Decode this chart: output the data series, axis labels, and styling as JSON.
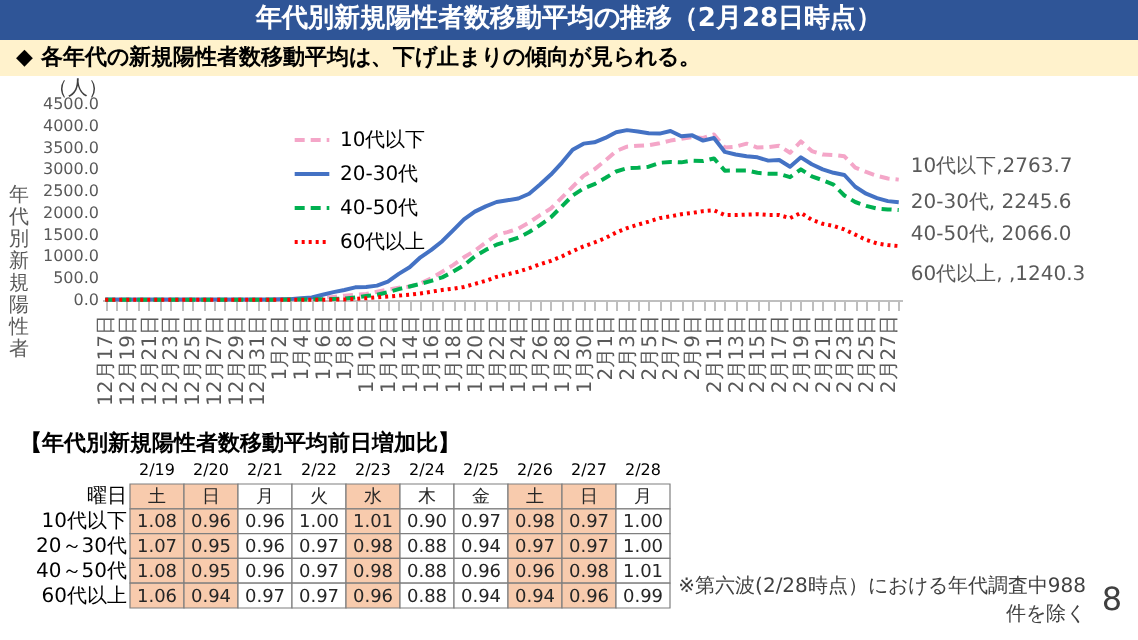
{
  "chart_data": [
    {
      "type": "line",
      "title": "年代別新規陽性者数移動平均の推移（2月28日時点）",
      "subtitle": "◆ 各年代の新規陽性者数移動平均は、下げ止まりの傾向が見られる。",
      "ylabel": "年代別新規陽性者",
      "legend": "top left",
      "categories": [
        "12月17日",
        null,
        "12月19日",
        null,
        "12月21日",
        null,
        "12月23日",
        null,
        "12月25日",
        null,
        "12月27日",
        null,
        "12月29日",
        null,
        "12月31日",
        null,
        "1月2日",
        null,
        "1月4日",
        null,
        "1月6日",
        null,
        "1月8日",
        null,
        "1月10日",
        null,
        "1月12日",
        null,
        "1月14日",
        null,
        "1月16日",
        null,
        "1月18日",
        null,
        "1月20日",
        null,
        "1月22日",
        null,
        "1月24日",
        null,
        "1月26日",
        null,
        "1月28日",
        null,
        "1月30日",
        null,
        "2月1日",
        null,
        "2月3日",
        null,
        "2月5日",
        null,
        "2月7日",
        null,
        "2月9日",
        null,
        "2月11日",
        null,
        "2月13日",
        null,
        "2月15日",
        null,
        "2月17日",
        null,
        "2月19日",
        null,
        "2月21日",
        null,
        "2月23日",
        null,
        "2月25日",
        null,
        "2月27日",
        null
      ],
      "series": [
        {
          "name": "10代以下",
          "color": "#f4a6c8",
          "line_style": "dashed",
          "values": [
            null,
            null,
            null,
            null,
            null,
            null,
            null,
            null,
            null,
            null,
            null,
            null,
            null,
            null,
            null,
            null,
            8,
            12,
            20,
            30,
            45,
            70,
            100,
            120,
            140,
            190,
            240,
            280,
            310,
            380,
            500,
            650,
            800,
            980,
            1130,
            1320,
            1490,
            1560,
            1640,
            1780,
            1950,
            2100,
            2350,
            2600,
            2850,
            3000,
            3200,
            3420,
            3520,
            3540,
            3555,
            3600,
            3660,
            3700,
            3740,
            3720,
            3800,
            3500,
            3520,
            3590,
            3500,
            3510,
            3540,
            3380,
            3640,
            3420,
            3340,
            3330,
            3300,
            3040,
            2940,
            2850,
            2790,
            2763.7
          ],
          "value_labels": [
            null,
            null,
            null,
            null,
            null,
            null,
            null,
            null,
            null,
            null,
            null,
            null,
            null,
            null,
            null,
            null,
            null,
            null,
            null,
            null,
            null,
            null,
            null,
            null,
            null,
            null,
            null,
            null,
            null,
            null,
            null,
            null,
            null,
            null,
            null,
            null,
            null,
            null,
            null,
            null,
            null,
            null,
            null,
            null,
            null,
            null,
            null,
            null,
            null,
            null,
            null,
            null,
            null,
            null,
            null,
            null,
            null,
            null,
            null,
            null,
            null,
            null,
            null,
            null,
            null,
            null,
            null,
            null,
            null,
            null,
            null,
            null,
            null,
            "10代以下,2763.7"
          ]
        },
        {
          "name": "20-30代",
          "color": "#4472c4",
          "line_style": "solid",
          "values": [
            10,
            10,
            10,
            10,
            10,
            10,
            10,
            10,
            10,
            10,
            10,
            10,
            10,
            10,
            10,
            10,
            15,
            20,
            40,
            60,
            120,
            180,
            230,
            290,
            300,
            330,
            420,
            600,
            750,
            980,
            1150,
            1350,
            1600,
            1850,
            2030,
            2150,
            2250,
            2290,
            2330,
            2440,
            2650,
            2880,
            3150,
            3450,
            3590,
            3620,
            3720,
            3850,
            3900,
            3870,
            3830,
            3820,
            3880,
            3760,
            3780,
            3660,
            3720,
            3400,
            3340,
            3300,
            3275,
            3200,
            3215,
            3060,
            3275,
            3118,
            3000,
            2920,
            2870,
            2600,
            2440,
            2340,
            2270,
            2245.6
          ],
          "value_labels": [
            null,
            null,
            null,
            null,
            null,
            null,
            null,
            null,
            null,
            null,
            null,
            null,
            null,
            null,
            null,
            null,
            null,
            null,
            null,
            null,
            null,
            null,
            null,
            null,
            null,
            null,
            null,
            null,
            null,
            null,
            null,
            null,
            null,
            null,
            null,
            null,
            null,
            null,
            null,
            null,
            null,
            null,
            null,
            null,
            null,
            null,
            null,
            null,
            null,
            null,
            null,
            null,
            null,
            null,
            null,
            null,
            null,
            null,
            null,
            null,
            null,
            null,
            null,
            null,
            null,
            null,
            null,
            null,
            null,
            null,
            null,
            null,
            null,
            "20-30代, 2245.6"
          ]
        },
        {
          "name": "40-50代",
          "color": "#00b050",
          "line_style": "dashed",
          "values": [
            5,
            5,
            5,
            5,
            5,
            5,
            5,
            5,
            5,
            5,
            5,
            5,
            5,
            5,
            5,
            5,
            7,
            10,
            12,
            15,
            20,
            25,
            30,
            60,
            90,
            120,
            180,
            250,
            310,
            370,
            440,
            520,
            650,
            800,
            1000,
            1150,
            1270,
            1350,
            1430,
            1560,
            1720,
            1900,
            2150,
            2400,
            2560,
            2660,
            2800,
            2950,
            3025,
            3035,
            3060,
            3150,
            3170,
            3160,
            3200,
            3190,
            3250,
            2970,
            2975,
            2975,
            2920,
            2900,
            2900,
            2820,
            3000,
            2840,
            2750,
            2650,
            2400,
            2250,
            2160,
            2100,
            2080,
            2066.0
          ],
          "value_labels": [
            null,
            null,
            null,
            null,
            null,
            null,
            null,
            null,
            null,
            null,
            null,
            null,
            null,
            null,
            null,
            null,
            null,
            null,
            null,
            null,
            null,
            null,
            null,
            null,
            null,
            null,
            null,
            null,
            null,
            null,
            null,
            null,
            null,
            null,
            null,
            null,
            null,
            null,
            null,
            null,
            null,
            null,
            null,
            null,
            null,
            null,
            null,
            null,
            null,
            null,
            null,
            null,
            null,
            null,
            null,
            null,
            null,
            null,
            null,
            null,
            null,
            null,
            null,
            null,
            null,
            null,
            null,
            null,
            null,
            null,
            null,
            null,
            null,
            "40-50代, 2066.0"
          ]
        },
        {
          "name": "60代以上",
          "color": "#ff0000",
          "line_style": "dotted",
          "values": [
            3,
            3,
            3,
            3,
            3,
            3,
            3,
            3,
            3,
            3,
            3,
            3,
            3,
            3,
            3,
            3,
            4,
            5,
            6,
            7,
            8,
            9,
            10,
            25,
            40,
            60,
            80,
            100,
            120,
            150,
            190,
            230,
            260,
            300,
            370,
            440,
            530,
            590,
            650,
            730,
            820,
            900,
            1000,
            1120,
            1230,
            1320,
            1420,
            1550,
            1650,
            1730,
            1800,
            1880,
            1920,
            1970,
            2000,
            2040,
            2060,
            1950,
            1950,
            1960,
            1970,
            1950,
            1950,
            1880,
            2000,
            1840,
            1750,
            1700,
            1620,
            1500,
            1380,
            1300,
            1260,
            1240.3
          ],
          "value_labels": [
            null,
            null,
            null,
            null,
            null,
            null,
            null,
            null,
            null,
            null,
            null,
            null,
            null,
            null,
            null,
            null,
            null,
            null,
            null,
            null,
            null,
            null,
            null,
            null,
            null,
            null,
            null,
            null,
            null,
            null,
            null,
            null,
            null,
            null,
            null,
            null,
            null,
            null,
            null,
            null,
            null,
            null,
            null,
            null,
            null,
            null,
            null,
            null,
            null,
            null,
            null,
            null,
            null,
            null,
            null,
            null,
            null,
            null,
            null,
            null,
            null,
            null,
            null,
            null,
            null,
            null,
            null,
            null,
            null,
            null,
            null,
            null,
            null,
            "60代以上, ,1240.3"
          ]
        }
      ],
      "ylim": [
        0,
        4500
      ],
      "yticks": [
        {
          "value": 0,
          "label": "0.0"
        },
        {
          "value": 500,
          "label": "500.0"
        },
        {
          "value": 1000,
          "label": "1000.0"
        },
        {
          "value": 1500,
          "label": "1500.0"
        },
        {
          "value": 2000,
          "label": "2000.0"
        },
        {
          "value": 2500,
          "label": "2500.0"
        },
        {
          "value": 3000,
          "label": "3000.0"
        },
        {
          "value": 3500,
          "label": "3500.0"
        },
        {
          "value": 4000,
          "label": "4000.0"
        },
        {
          "value": 4500,
          "label": "4500.0"
        }
      ],
      "annotations": [
        "（人）",
        "※第六波(2/28時点）における年代調査中988件を除く",
        "8"
      ]
    },
    {
      "type": "heatmap",
      "title": "【年代別新規陽性者数移動平均前日増加比】",
      "categories": [
        "2/19",
        "2/20",
        "2/21",
        "2/22",
        "2/23",
        "2/24",
        "2/25",
        "2/26",
        "2/27",
        "2/28"
      ],
      "y_categories": [
        "曜日",
        "10代以下",
        "20～30代",
        "40～50代",
        "60代以上"
      ],
      "colors": [
        "#f8cbad",
        "#f8cbad",
        "#ffffff",
        "#ffffff",
        "#f8cbad",
        "#ffffff",
        "#ffffff",
        "#f8cbad",
        "#f8cbad",
        "#ffffff"
      ],
      "cells": [
        [
          null,
          null,
          null,
          null,
          null,
          null,
          null,
          null,
          null,
          null
        ],
        [
          1.08,
          0.96,
          0.96,
          1.0,
          1.01,
          0.9,
          0.97,
          0.98,
          0.97,
          1.0
        ],
        [
          1.07,
          0.95,
          0.96,
          0.97,
          0.98,
          0.88,
          0.94,
          0.97,
          0.97,
          1.0
        ],
        [
          1.08,
          0.95,
          0.96,
          0.97,
          0.98,
          0.88,
          0.96,
          0.96,
          0.98,
          1.01
        ],
        [
          1.06,
          0.94,
          0.97,
          0.97,
          0.96,
          0.88,
          0.94,
          0.94,
          0.96,
          0.99
        ]
      ],
      "cell_labels": [
        [
          "土",
          "日",
          "月",
          "火",
          "水",
          "木",
          "金",
          "土",
          "日",
          "月"
        ],
        [
          "1.08",
          "0.96",
          "0.96",
          "1.00",
          "1.01",
          "0.90",
          "0.97",
          "0.98",
          "0.97",
          "1.00"
        ],
        [
          "1.07",
          "0.95",
          "0.96",
          "0.97",
          "0.98",
          "0.88",
          "0.94",
          "0.97",
          "0.97",
          "1.00"
        ],
        [
          "1.08",
          "0.95",
          "0.96",
          "0.97",
          "0.98",
          "0.88",
          "0.96",
          "0.96",
          "0.98",
          "1.01"
        ],
        [
          "1.06",
          "0.94",
          "0.97",
          "0.97",
          "0.96",
          "0.88",
          "0.94",
          "0.94",
          "0.96",
          "0.99"
        ]
      ]
    }
  ]
}
